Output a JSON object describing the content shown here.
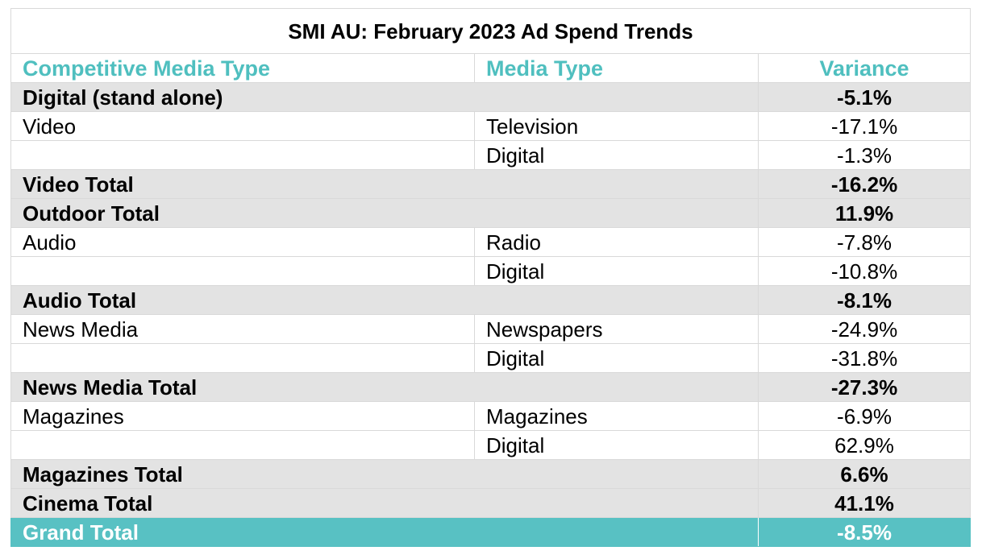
{
  "chart_data": {
    "type": "table",
    "title": "SMI AU: February 2023 Ad Spend Trends",
    "columns": [
      "Competitive Media Type",
      "Media Type",
      "Variance"
    ],
    "rows": [
      {
        "kind": "total",
        "category": "Digital (stand alone)",
        "media": "",
        "variance": "-5.1%"
      },
      {
        "kind": "detail",
        "category": "Video",
        "media": "Television",
        "variance": "-17.1%"
      },
      {
        "kind": "detail",
        "category": "",
        "media": "Digital",
        "variance": "-1.3%"
      },
      {
        "kind": "total",
        "category": "Video Total",
        "media": "",
        "variance": "-16.2%"
      },
      {
        "kind": "total",
        "category": "Outdoor Total",
        "media": "",
        "variance": "11.9%"
      },
      {
        "kind": "detail",
        "category": "Audio",
        "media": "Radio",
        "variance": "-7.8%"
      },
      {
        "kind": "detail",
        "category": "",
        "media": "Digital",
        "variance": "-10.8%"
      },
      {
        "kind": "total",
        "category": "Audio Total",
        "media": "",
        "variance": "-8.1%"
      },
      {
        "kind": "detail",
        "category": "News Media",
        "media": "Newspapers",
        "variance": "-24.9%"
      },
      {
        "kind": "detail",
        "category": "",
        "media": "Digital",
        "variance": "-31.8%"
      },
      {
        "kind": "total",
        "category": "News Media Total",
        "media": "",
        "variance": "-27.3%"
      },
      {
        "kind": "detail",
        "category": "Magazines",
        "media": "Magazines",
        "variance": "-6.9%"
      },
      {
        "kind": "detail",
        "category": "",
        "media": "Digital",
        "variance": "62.9%"
      },
      {
        "kind": "total",
        "category": "Magazines Total",
        "media": "",
        "variance": "6.6%"
      },
      {
        "kind": "total",
        "category": "Cinema Total",
        "media": "",
        "variance": "41.1%"
      },
      {
        "kind": "grand",
        "category": "Grand Total",
        "media": "",
        "variance": "-8.5%"
      }
    ],
    "colors": {
      "header_text": "#4fbfbf",
      "total_row_bg": "#e3e3e3",
      "grand_total_bg": "#58c1c3",
      "grand_total_text": "#ffffff"
    }
  }
}
